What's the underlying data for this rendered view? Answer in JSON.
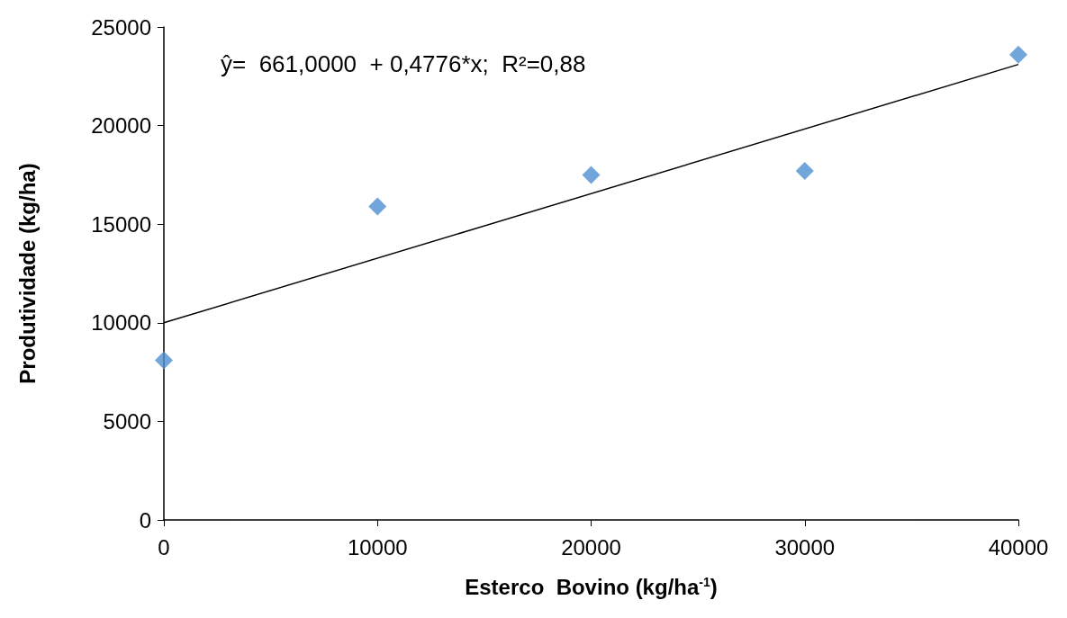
{
  "chart_data": {
    "type": "scatter",
    "xlabel": "Esterco  Bovino (kg/ha$^{-1}$)",
    "ylabel": "Produtividade (kg/ha)",
    "series": [
      {
        "color": "#4f8fd0",
        "marker": "diamond",
        "x": [
          0,
          10000,
          20000,
          30000,
          40000
        ],
        "values": [
          8100,
          15900,
          17500,
          17700,
          23600
        ]
      },
      {
        "type": "line",
        "color": "#000000",
        "marker": "none",
        "line_style": "solid",
        "x": [
          0,
          40000
        ],
        "values": [
          10000,
          23100
        ]
      }
    ],
    "annotations": [
      "ŷ=  661,0000  + 0,4776*x;  R²=0,88"
    ],
    "xlim": [
      0,
      40000
    ],
    "xticks": [
      0,
      10000,
      20000,
      30000,
      40000
    ],
    "ylim": [
      0,
      25000
    ],
    "yticks": [
      0,
      5000,
      10000,
      15000,
      20000,
      25000
    ],
    "grid": false
  }
}
